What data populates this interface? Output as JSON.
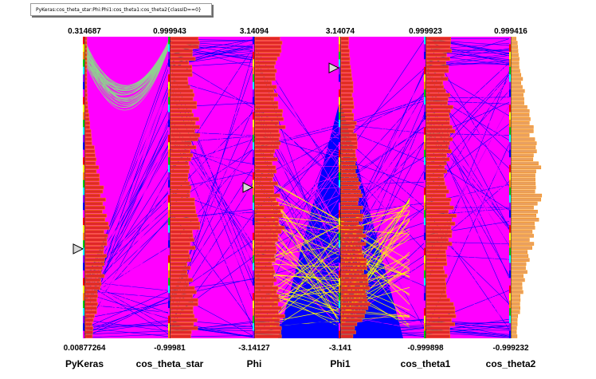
{
  "title": "PyKeras:cos_theta_star:Phi:Phi1:cos_theta1:cos_theta2{classID==0}",
  "chart_data": {
    "type": "parallel-coordinates",
    "title": "PyKeras:cos_theta_star:Phi:Phi1:cos_theta1:cos_theta2{classID==0}",
    "axes": [
      {
        "name": "PyKeras",
        "min_label": "0.00877264",
        "max_label": "0.314687",
        "min": 0.00877264,
        "max": 0.314687
      },
      {
        "name": "cos_theta_star",
        "min_label": "-0.99981",
        "max_label": "0.999943",
        "min": -0.99981,
        "max": 0.999943
      },
      {
        "name": "Phi",
        "min_label": "-3.14127",
        "max_label": "3.14094",
        "min": -3.14127,
        "max": 3.14094
      },
      {
        "name": "Phi1",
        "min_label": "-3.141",
        "max_label": "3.14074",
        "min": -3.141,
        "max": 3.14074
      },
      {
        "name": "cos_theta1",
        "min_label": "-0.999898",
        "max_label": "0.999923",
        "min": -0.999898,
        "max": 0.999923
      },
      {
        "name": "cos_theta2",
        "min_label": "-0.999232",
        "max_label": "0.999416",
        "min": -0.999232,
        "max": 0.999416
      }
    ],
    "range_markers": [
      {
        "axis": "PyKeras",
        "value": 0.0995
      },
      {
        "axis": "Phi",
        "value": 0.0
      },
      {
        "axis": "Phi1",
        "value": 2.49
      }
    ],
    "colors": {
      "lines": "#ff00ff",
      "lines_secondary": "#0000ff",
      "lines_highlight": "#ffff00",
      "lines_top": "#90d090",
      "histogram_fill": "#e02828",
      "histogram_edge": "#ff8c00",
      "histogram_last": "#e8a060"
    },
    "histogram_shapes": [
      "bulge-low",
      "flat",
      "flat",
      "rising-low",
      "flat",
      "bell"
    ]
  }
}
